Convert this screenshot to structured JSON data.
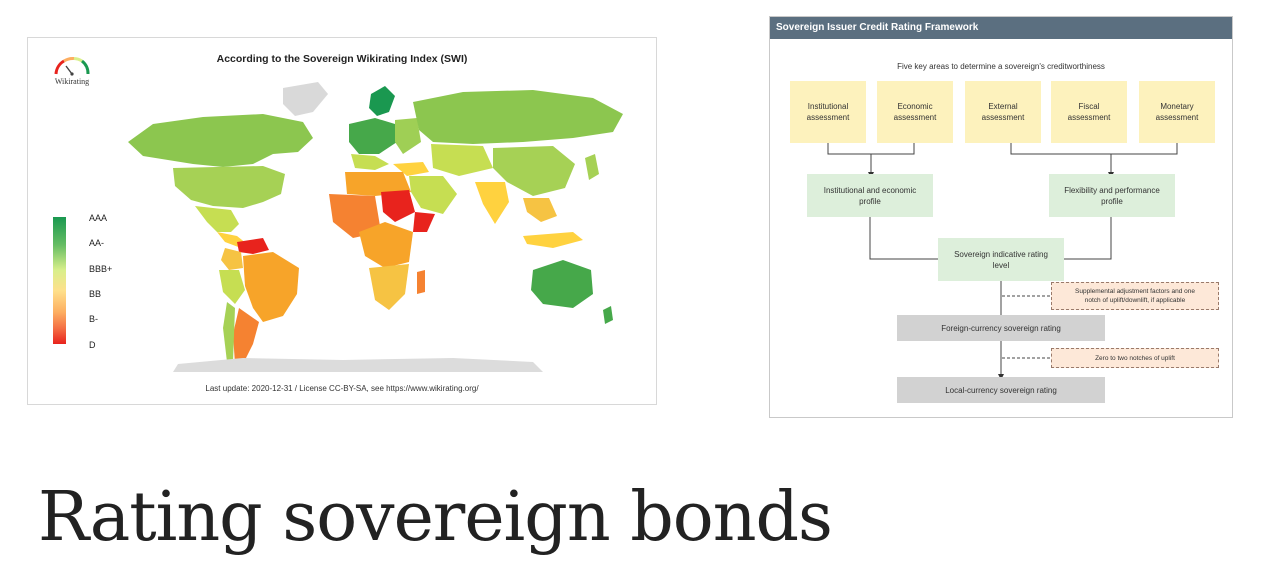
{
  "map": {
    "title": "According to the Sovereign Wikirating Index (SWI)",
    "logo_text": "Wikirating",
    "legend": [
      "AAA",
      "AA-",
      "BBB+",
      "BB",
      "B-",
      "D"
    ],
    "footer": "Last update: 2020-12-31  /  License CC-BY-SA, see https://www.wikirating.org/",
    "scale_colors": [
      "#1a9850",
      "#66bd63",
      "#d9ef8b",
      "#fee08b",
      "#fdae61",
      "#e8231d"
    ]
  },
  "framework": {
    "header": "Sovereign Issuer Credit Rating Framework",
    "subtitle": "Five key areas to determine a sovereign's creditworthiness",
    "areas": [
      {
        "line1": "Institutional",
        "line2": "assessment"
      },
      {
        "line1": "Economic",
        "line2": "assessment"
      },
      {
        "line1": "External",
        "line2": "assessment"
      },
      {
        "line1": "Fiscal",
        "line2": "assessment"
      },
      {
        "line1": "Monetary",
        "line2": "assessment"
      }
    ],
    "profile_left": {
      "line1": "Institutional and economic",
      "line2": "profile"
    },
    "profile_right": {
      "line1": "Flexibility and performance",
      "line2": "profile"
    },
    "indicative": {
      "line1": "Sovereign indicative rating",
      "line2": "level"
    },
    "supplemental": {
      "line1": "Supplemental adjustment factors and one",
      "line2": "notch of uplift/downlift, if applicable"
    },
    "foreign": "Foreign-currency sovereign rating",
    "uplift": "Zero to two notches of uplift",
    "local": "Local-currency sovereign rating"
  },
  "slide_title": "Rating sovereign bonds"
}
